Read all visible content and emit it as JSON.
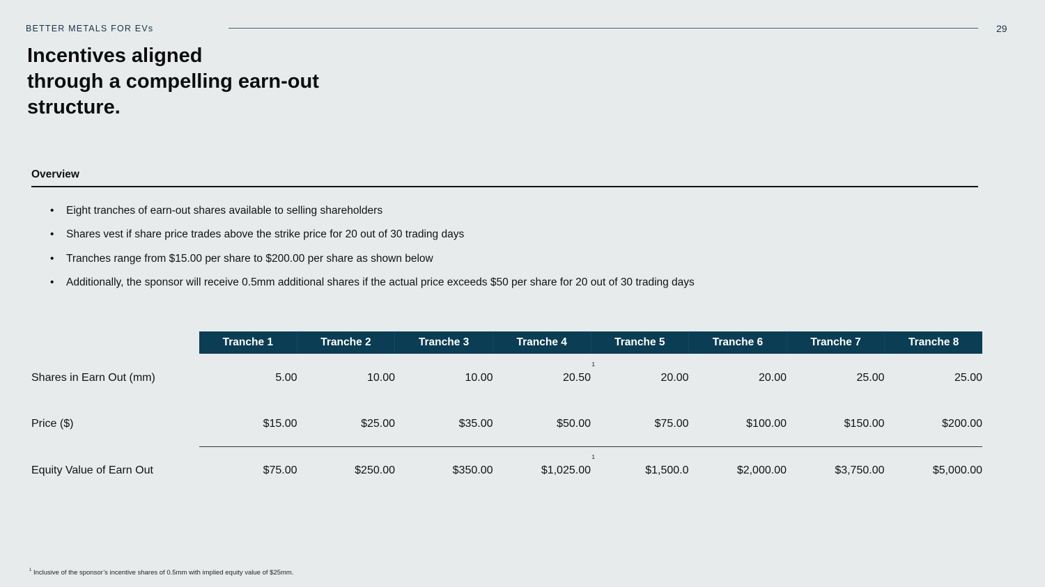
{
  "header": {
    "label": "BETTER METALS FOR EVs",
    "page_number": "29"
  },
  "title": {
    "line1": "Incentives aligned",
    "line2": "through a compelling earn-out",
    "line3": "structure."
  },
  "overview": {
    "heading": "Overview",
    "bullets": [
      "Eight tranches of earn-out shares available to selling shareholders",
      "Shares vest if share price trades above the strike price for 20 out of 30 trading days",
      "Tranches range from $15.00 per share to $200.00 per share as shown below",
      "Additionally, the sponsor will receive 0.5mm additional shares if the actual price exceeds $50 per share for 20 out of 30 trading days"
    ]
  },
  "table": {
    "columns": [
      "Tranche 1",
      "Tranche 2",
      "Tranche 3",
      "Tranche 4",
      "Tranche 5",
      "Tranche 6",
      "Tranche 7",
      "Tranche 8"
    ],
    "rows": [
      {
        "label": "Shares in Earn Out (mm)",
        "values": [
          "5.00",
          "10.00",
          "10.00",
          "20.50",
          "20.00",
          "20.00",
          "25.00",
          "25.00"
        ],
        "footnote_mark": "1"
      },
      {
        "label": "Price ($)",
        "values": [
          "$15.00",
          "$25.00",
          "$35.00",
          "$50.00",
          "$75.00",
          "$100.00",
          "$150.00",
          "$200.00"
        ]
      },
      {
        "label": "Equity Value of Earn Out",
        "values": [
          "$75.00",
          "$250.00",
          "$350.00",
          "$1,025.00",
          "$1,500.0",
          "$2,000.00",
          "$3,750.00",
          "$5,000.00"
        ],
        "footnote_mark": "1"
      }
    ]
  },
  "footnote": {
    "mark": "1",
    "text": "Inclusive of the sponsor’s incentive shares of 0.5mm with implied equity value of $25mm."
  }
}
